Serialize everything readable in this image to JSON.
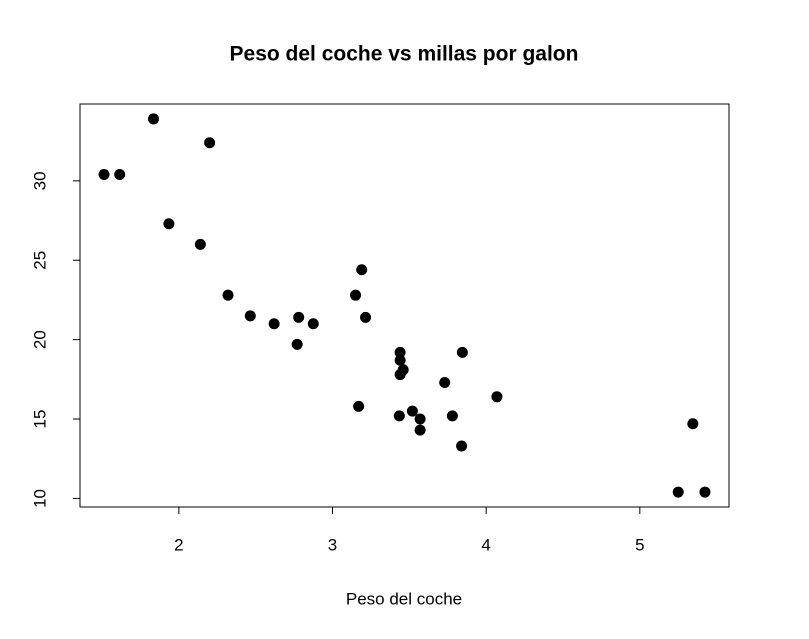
{
  "chart_data": {
    "type": "scatter",
    "title": "Peso del coche vs millas por galon",
    "x_label": "Peso del coche",
    "x": [
      2.62,
      2.875,
      2.32,
      3.215,
      3.44,
      3.46,
      3.57,
      3.19,
      3.15,
      3.44,
      3.44,
      4.07,
      3.73,
      3.78,
      5.25,
      5.424,
      5.345,
      2.2,
      1.615,
      1.835,
      2.465,
      3.52,
      3.435,
      3.84,
      3.845,
      1.935,
      2.14,
      1.513,
      3.17,
      2.77,
      3.57,
      2.78
    ],
    "values": [
      21.0,
      21.0,
      22.8,
      21.4,
      18.7,
      18.1,
      14.3,
      24.4,
      22.8,
      19.2,
      17.8,
      16.4,
      17.3,
      15.2,
      10.4,
      10.4,
      14.7,
      32.4,
      30.4,
      33.9,
      21.5,
      15.5,
      15.2,
      13.3,
      19.2,
      27.3,
      26.0,
      30.4,
      15.8,
      19.7,
      15.0,
      21.4
    ],
    "color": "#000000",
    "xlim": [
      1.3566,
      5.5804
    ],
    "ylim": [
      9.46,
      34.84
    ],
    "xticks": [
      2,
      3,
      4,
      5
    ],
    "yticks": [
      10,
      15,
      20,
      25,
      30
    ]
  }
}
